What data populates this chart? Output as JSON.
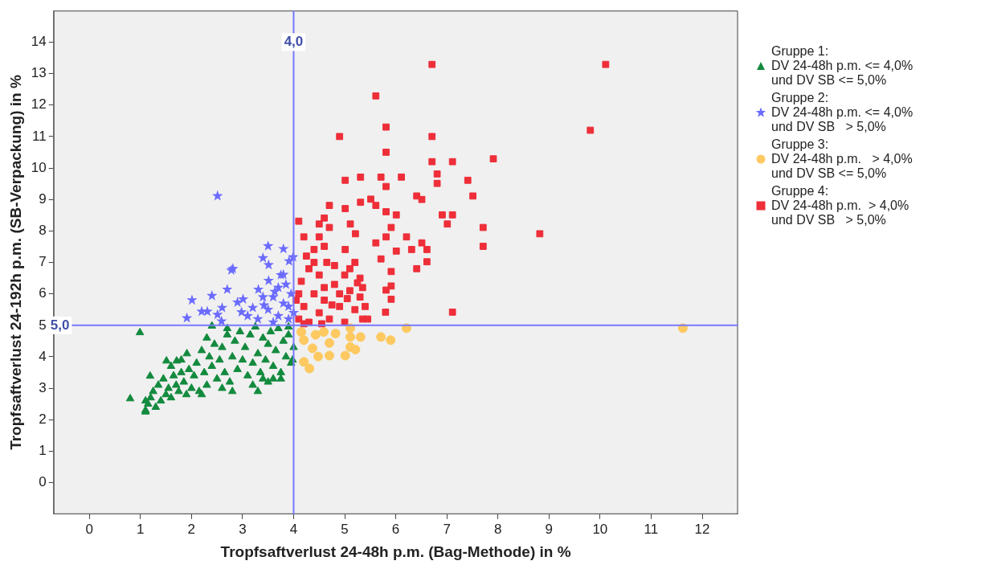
{
  "chart_data": {
    "type": "scatter",
    "xlabel": "Tropfsaftverlust 24-48h p.m. (Bag-Methode) in %",
    "ylabel": "Tropfsaftverlust 24-192h p.m. (SB-Verpackung) in %",
    "xlim": [
      -0.7,
      12.7
    ],
    "xticks": [
      0,
      1,
      2,
      3,
      4,
      5,
      6,
      7,
      8,
      9,
      10,
      11,
      12
    ],
    "ylim": [
      -1,
      15
    ],
    "yticks": [
      0,
      1,
      2,
      3,
      4,
      5,
      6,
      7,
      8,
      9,
      10,
      11,
      12,
      13,
      14
    ],
    "grid": false,
    "legend": "right",
    "ref_lines": [
      {
        "axis": "x",
        "value": 4,
        "label": "4,0",
        "color": "#7878ff"
      },
      {
        "axis": "y",
        "value": 5,
        "label": "5,0",
        "color": "#7878ff"
      }
    ],
    "series": [
      {
        "name": "Gruppe 1:\nDV 24-48h p.m. <= 4,0%\nund DV SB <= 5,0%",
        "color": "#138a3e",
        "marker": "triangle",
        "x": [
          1.1,
          1.15,
          1.2,
          1.1,
          1.3,
          1.25,
          1.4,
          1.35,
          1.5,
          1.45,
          1.19,
          0.8,
          0.99,
          1.1,
          1.55,
          1.6,
          1.65,
          1.7,
          1.75,
          1.8,
          1.85,
          1.9,
          1.95,
          1.51,
          1.71,
          1.91,
          1.6,
          1.8,
          2.0,
          2.05,
          2.1,
          2.15,
          2.2,
          2.25,
          2.3,
          2.35,
          2.4,
          2.45,
          2.4,
          2.5,
          2.2,
          2.3,
          2.55,
          2.6,
          2.65,
          2.7,
          2.75,
          2.8,
          2.85,
          2.9,
          2.95,
          3.0,
          2.6,
          2.8,
          2.7,
          3.05,
          3.1,
          3.15,
          3.2,
          3.25,
          3.3,
          3.35,
          3.4,
          3.45,
          3.5,
          3.2,
          3.4,
          3.3,
          3.5,
          3.55,
          3.6,
          3.65,
          3.7,
          3.75,
          3.8,
          3.85,
          3.9,
          3.95,
          3.6,
          3.75,
          3.9,
          4.0,
          3.98
        ],
        "values": [
          2.3,
          2.5,
          2.7,
          2.6,
          2.4,
          2.9,
          2.6,
          3.1,
          2.8,
          3.3,
          3.39,
          2.67,
          4.77,
          2.25,
          3.0,
          2.7,
          3.4,
          3.1,
          2.9,
          3.5,
          3.2,
          2.8,
          3.6,
          3.87,
          3.87,
          4.1,
          3.7,
          3.9,
          3.0,
          3.4,
          3.8,
          2.9,
          4.2,
          3.5,
          3.1,
          4.0,
          3.7,
          4.4,
          4.98,
          3.3,
          2.8,
          4.6,
          3.9,
          4.3,
          3.5,
          4.7,
          3.2,
          4.0,
          4.5,
          3.6,
          4.8,
          3.9,
          3.0,
          2.9,
          4.9,
          4.3,
          3.4,
          4.7,
          3.8,
          4.95,
          4.1,
          3.5,
          4.6,
          3.9,
          4.4,
          3.1,
          3.3,
          2.9,
          3.2,
          4.8,
          3.7,
          4.2,
          4.9,
          3.5,
          4.5,
          4.0,
          4.7,
          3.8,
          3.3,
          3.3,
          4.95,
          4.3,
          3.9
        ]
      },
      {
        "name": "Gruppe 2:\nDV 24-48h p.m. <= 4,0%\nund DV SB   > 5,0%",
        "color": "#6b6bff",
        "marker": "star",
        "x": [
          2.51,
          3.5,
          3.8,
          3.4,
          3.99,
          3.51,
          3.91,
          2.81,
          3.8,
          3.51,
          2.7,
          3.31,
          2.4,
          2.01,
          3.01,
          3.63,
          2.9,
          2.6,
          2.2,
          2.31,
          1.91,
          2.51,
          2.98,
          3.2,
          3.42,
          2.59,
          3.1,
          3.3,
          3.5,
          3.6,
          3.7,
          3.8,
          3.9,
          3.95,
          3.85,
          3.7,
          3.4,
          3.6,
          3.9,
          3.75,
          4.0,
          2.78
        ],
        "values": [
          9.11,
          7.52,
          7.43,
          7.14,
          7.17,
          6.92,
          7.04,
          6.8,
          6.61,
          6.42,
          6.14,
          6.14,
          5.94,
          5.8,
          5.83,
          6.07,
          5.73,
          5.56,
          5.44,
          5.44,
          5.23,
          5.34,
          5.42,
          5.56,
          5.64,
          5.13,
          5.3,
          5.2,
          5.5,
          5.9,
          5.3,
          5.7,
          5.2,
          6.0,
          6.3,
          6.2,
          5.9,
          5.1,
          5.6,
          6.6,
          5.4,
          6.75
        ]
      },
      {
        "name": "Gruppe 3:\nDV 24-48h p.m.   > 4,0%\nund DV SB <= 5,0%",
        "color": "#fdc960",
        "marker": "circle",
        "x": [
          6.21,
          11.62,
          5.11,
          5.71,
          5.9,
          5.31,
          5.11,
          5.11,
          5.21,
          5.01,
          4.7,
          4.7,
          4.82,
          4.59,
          4.31,
          4.2,
          4.37,
          4.2,
          4.43,
          4.15,
          4.48
        ],
        "values": [
          4.91,
          4.91,
          4.91,
          4.63,
          4.53,
          4.63,
          4.63,
          4.31,
          4.23,
          4.04,
          4.04,
          4.44,
          4.74,
          4.79,
          3.63,
          3.84,
          4.27,
          4.53,
          4.7,
          4.79,
          4.01
        ]
      },
      {
        "name": "Gruppe 4:\nDV 24-48h p.m.  > 4,0%\nund DV SB   > 5,0%",
        "color": "#ee2e38",
        "marker": "square",
        "x": [
          6.71,
          10.11,
          5.61,
          5.81,
          4.9,
          6.71,
          9.81,
          5.81,
          6.71,
          7.11,
          7.91,
          5.01,
          5.31,
          5.71,
          6.11,
          5.81,
          6.81,
          6.81,
          7.41,
          7.51,
          6.41,
          6.51,
          4.7,
          5.01,
          5.31,
          5.51,
          5.61,
          5.81,
          6.01,
          6.91,
          7.11,
          7.01,
          7.71,
          7.71,
          8.82,
          4.1,
          4.6,
          4.5,
          4.7,
          5.11,
          5.21,
          4.2,
          4.5,
          5.91,
          5.81,
          6.21,
          5.61,
          6.51,
          6.61,
          6.31,
          6.01,
          4.4,
          4.6,
          5.01,
          6.61,
          6.41,
          5.91,
          5.71,
          5.91,
          5.81,
          5.91,
          7.11,
          5.8,
          4.1,
          4.2,
          4.3,
          4.4,
          4.5,
          4.6,
          4.7,
          4.8,
          4.9,
          5.0,
          5.1,
          5.2,
          5.3,
          5.35,
          4.15,
          4.3,
          4.5,
          4.65,
          4.8,
          5.0,
          5.2,
          5.3,
          4.1,
          4.25,
          4.4,
          4.6,
          4.9,
          5.1,
          5.35,
          4.2,
          4.55,
          4.75,
          5.05,
          5.25,
          4.05,
          5.4,
          5.45
        ],
        "values": [
          13.29,
          13.29,
          12.29,
          11.3,
          11.0,
          11.0,
          11.2,
          10.5,
          10.2,
          10.2,
          10.29,
          9.61,
          9.71,
          9.71,
          9.71,
          9.41,
          9.81,
          9.51,
          9.61,
          9.11,
          9.11,
          9.0,
          8.81,
          8.71,
          8.91,
          9.01,
          8.81,
          8.61,
          8.51,
          8.51,
          8.51,
          8.22,
          8.11,
          7.51,
          7.91,
          8.31,
          8.41,
          8.22,
          8.11,
          8.22,
          7.91,
          7.81,
          7.81,
          8.11,
          7.81,
          7.81,
          7.62,
          7.62,
          7.41,
          7.41,
          7.36,
          7.41,
          7.51,
          7.41,
          7.02,
          6.8,
          6.71,
          7.11,
          6.25,
          6.12,
          5.83,
          5.42,
          5.42,
          5.2,
          5.6,
          5.1,
          6.0,
          5.4,
          5.8,
          5.2,
          6.3,
          5.6,
          5.1,
          6.1,
          5.5,
          5.9,
          5.2,
          6.4,
          6.8,
          6.6,
          7.0,
          6.9,
          6.6,
          7.0,
          6.5,
          6.0,
          7.2,
          7.0,
          6.2,
          6.0,
          6.8,
          6.2,
          5.05,
          5.05,
          5.65,
          5.85,
          6.35,
          5.8,
          5.6,
          5.2
        ]
      }
    ]
  }
}
